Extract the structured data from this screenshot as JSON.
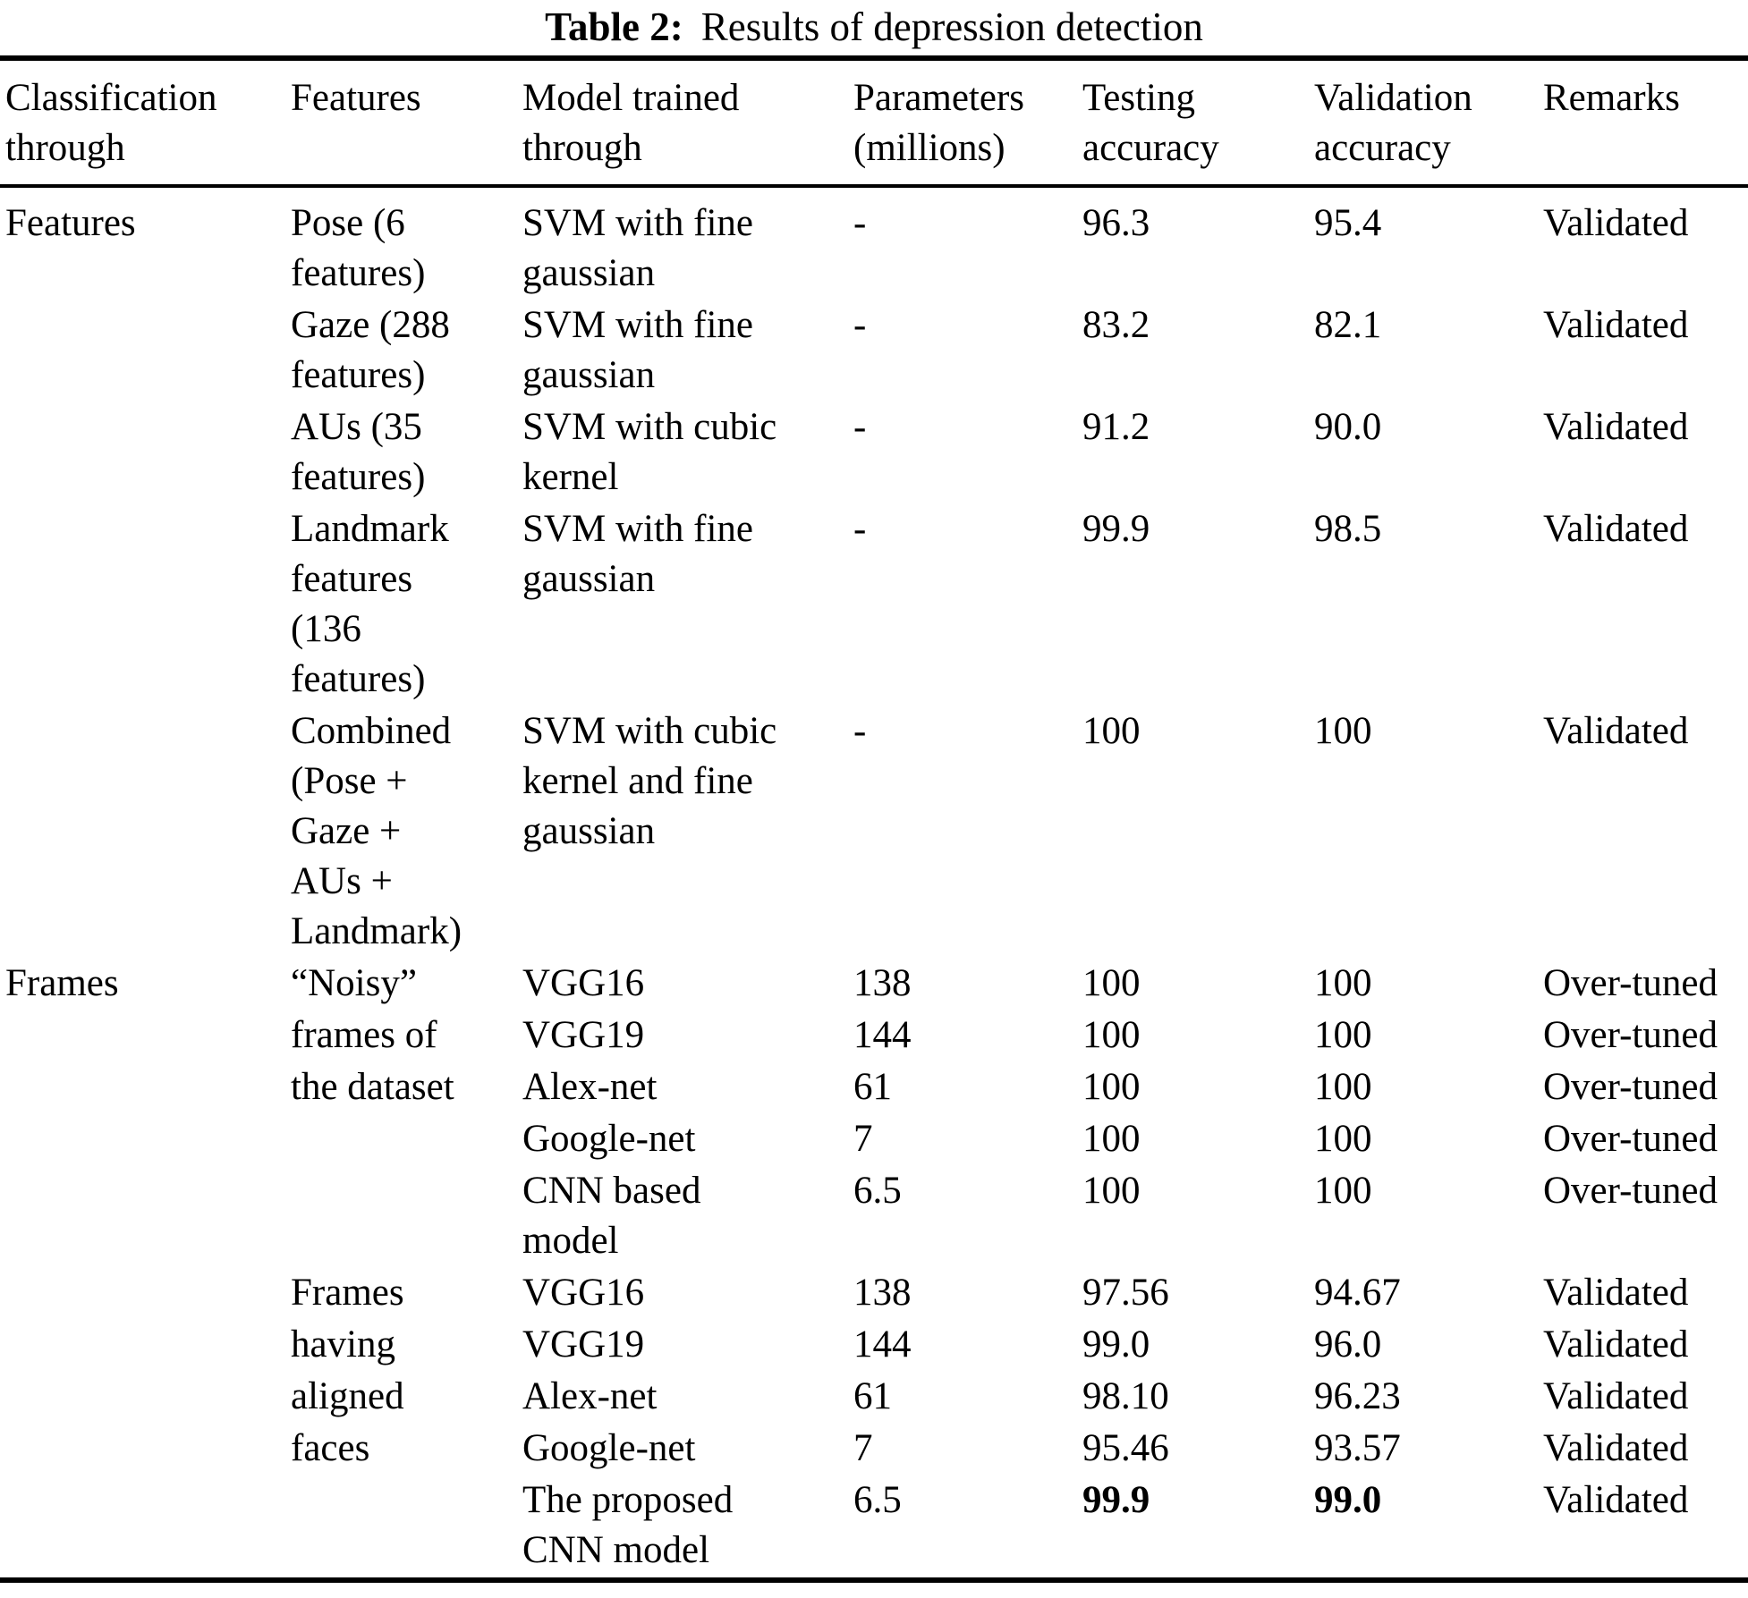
{
  "caption": {
    "label": "Table 2:",
    "text": "Results of depression detection"
  },
  "table": {
    "headers": [
      "Classification\nthrough",
      "Features",
      "Model trained\nthrough",
      "Parameters\n(millions)",
      "Testing\naccuracy",
      "Validation\naccuracy",
      "Remarks"
    ],
    "rows": [
      {
        "cells": [
          "Features",
          "Pose (6\nfeatures)",
          "SVM with fine\ngaussian",
          "-",
          "96.3",
          "95.4",
          "Validated"
        ],
        "bold_cells": []
      },
      {
        "cells": [
          "",
          "Gaze (288\nfeatures)",
          "SVM with fine\ngaussian",
          "-",
          "83.2",
          "82.1",
          "Validated"
        ],
        "bold_cells": []
      },
      {
        "cells": [
          "",
          "AUs (35\nfeatures)",
          "SVM with cubic\nkernel",
          "-",
          "91.2",
          "90.0",
          "Validated"
        ],
        "bold_cells": []
      },
      {
        "cells": [
          "",
          "Landmark\nfeatures\n(136\nfeatures)",
          "SVM with fine\ngaussian",
          "-",
          "99.9",
          "98.5",
          "Validated"
        ],
        "bold_cells": []
      },
      {
        "cells": [
          "",
          "Combined\n(Pose +\nGaze +\nAUs +\nLandmark)",
          "SVM with cubic\nkernel and fine\ngaussian",
          "-",
          "100",
          "100",
          "Validated"
        ],
        "bold_cells": []
      },
      {
        "cells": [
          "Frames",
          "“Noisy”",
          "VGG16",
          "138",
          "100",
          "100",
          "Over-tuned"
        ],
        "bold_cells": []
      },
      {
        "cells": [
          "",
          "frames of",
          "VGG19",
          "144",
          "100",
          "100",
          "Over-tuned"
        ],
        "bold_cells": []
      },
      {
        "cells": [
          "",
          "the dataset",
          "Alex-net",
          "61",
          "100",
          "100",
          "Over-tuned"
        ],
        "bold_cells": []
      },
      {
        "cells": [
          "",
          "",
          "Google-net",
          "7",
          "100",
          "100",
          "Over-tuned"
        ],
        "bold_cells": []
      },
      {
        "cells": [
          "",
          "",
          "CNN based\nmodel",
          "6.5",
          "100",
          "100",
          "Over-tuned"
        ],
        "bold_cells": []
      },
      {
        "cells": [
          "",
          "Frames",
          "VGG16",
          "138",
          "97.56",
          "94.67",
          "Validated"
        ],
        "bold_cells": []
      },
      {
        "cells": [
          "",
          "having",
          "VGG19",
          "144",
          "99.0",
          "96.0",
          "Validated"
        ],
        "bold_cells": []
      },
      {
        "cells": [
          "",
          "aligned",
          "Alex-net",
          "61",
          "98.10",
          "96.23",
          "Validated"
        ],
        "bold_cells": []
      },
      {
        "cells": [
          "",
          "faces",
          "Google-net",
          "7",
          "95.46",
          "93.57",
          "Validated"
        ],
        "bold_cells": []
      },
      {
        "cells": [
          "",
          "",
          "The proposed\nCNN model",
          "6.5",
          "99.9",
          "99.0",
          "Validated"
        ],
        "bold_cells": [
          4,
          5
        ]
      }
    ],
    "cell_names": [
      "cell-classification-through",
      "cell-features",
      "cell-model-trained-through",
      "cell-parameters-millions",
      "cell-testing-accuracy",
      "cell-validation-accuracy",
      "cell-remarks"
    ],
    "text_color": "#000000",
    "background_color": "#ffffff"
  }
}
